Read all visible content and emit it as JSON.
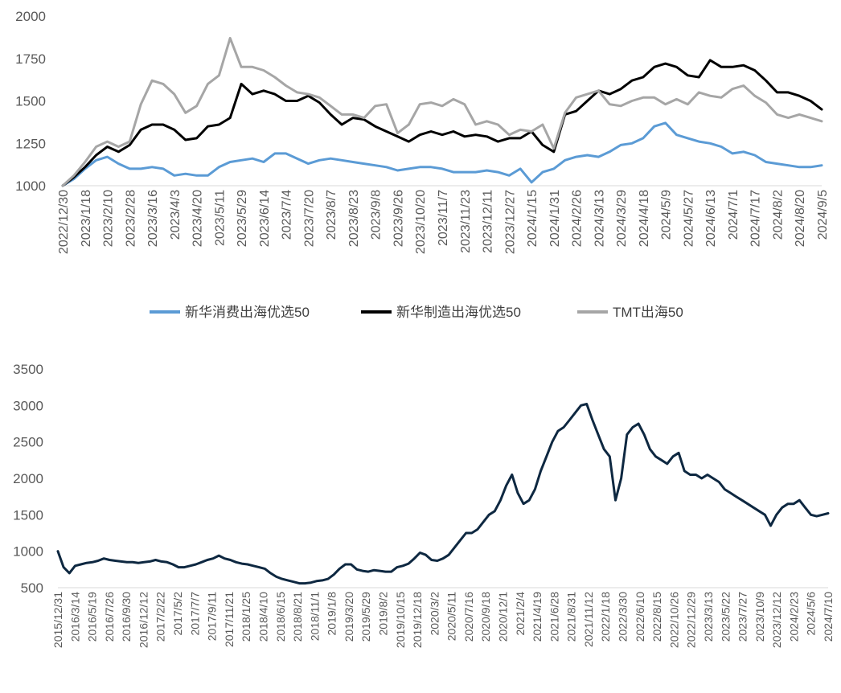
{
  "chart_data": [
    {
      "type": "line",
      "ylim": [
        1000,
        2000
      ],
      "yticks": [
        1000,
        1250,
        1500,
        1750,
        2000
      ],
      "x_labels": [
        "2022/12/30",
        "2023/1/18",
        "2023/2/10",
        "2023/2/28",
        "2023/3/16",
        "2023/4/3",
        "2023/4/20",
        "2023/5/11",
        "2023/5/29",
        "2023/6/14",
        "2023/7/4",
        "2023/7/20",
        "2023/8/7",
        "2023/8/23",
        "2023/9/8",
        "2023/9/26",
        "2023/10/20",
        "2023/11/7",
        "2023/11/23",
        "2023/12/11",
        "2023/12/27",
        "2024/1/15",
        "2024/1/31",
        "2024/2/26",
        "2024/3/13",
        "2024/3/29",
        "2024/4/18",
        "2024/5/9",
        "2024/5/27",
        "2024/6/13",
        "2024/7/1",
        "2024/7/17",
        "2024/8/2",
        "2024/8/20",
        "2024/9/5"
      ],
      "legend_position": "bottom",
      "grid": false,
      "series": [
        {
          "name": "新华消费出海优选50",
          "color": "#5b9bd5",
          "values": [
            1000,
            1040,
            1100,
            1150,
            1170,
            1130,
            1100,
            1100,
            1110,
            1100,
            1060,
            1070,
            1060,
            1060,
            1110,
            1140,
            1150,
            1160,
            1140,
            1190,
            1190,
            1160,
            1130,
            1150,
            1160,
            1150,
            1140,
            1130,
            1120,
            1110,
            1090,
            1100,
            1110,
            1110,
            1100,
            1080,
            1080,
            1080,
            1090,
            1080,
            1060,
            1100,
            1020,
            1080,
            1100,
            1150,
            1170,
            1180,
            1170,
            1200,
            1240,
            1250,
            1280,
            1350,
            1370,
            1300,
            1280,
            1260,
            1250,
            1230,
            1190,
            1200,
            1180,
            1140,
            1130,
            1120,
            1110,
            1110,
            1120
          ]
        },
        {
          "name": "新华制造出海优选50",
          "color": "#000000",
          "values": [
            1000,
            1050,
            1110,
            1180,
            1230,
            1200,
            1240,
            1330,
            1360,
            1360,
            1330,
            1270,
            1280,
            1350,
            1360,
            1400,
            1600,
            1540,
            1560,
            1540,
            1500,
            1500,
            1530,
            1490,
            1420,
            1360,
            1400,
            1390,
            1350,
            1320,
            1290,
            1260,
            1300,
            1320,
            1300,
            1320,
            1290,
            1300,
            1290,
            1260,
            1280,
            1280,
            1320,
            1240,
            1200,
            1420,
            1440,
            1500,
            1560,
            1540,
            1570,
            1620,
            1640,
            1700,
            1720,
            1700,
            1650,
            1640,
            1740,
            1700,
            1700,
            1710,
            1680,
            1620,
            1550,
            1550,
            1530,
            1500,
            1450
          ]
        },
        {
          "name": "TMT出海50",
          "color": "#a6a6a6",
          "values": [
            1000,
            1060,
            1140,
            1230,
            1260,
            1230,
            1260,
            1480,
            1620,
            1600,
            1540,
            1430,
            1470,
            1600,
            1650,
            1870,
            1700,
            1700,
            1680,
            1640,
            1590,
            1550,
            1540,
            1520,
            1470,
            1420,
            1420,
            1400,
            1470,
            1480,
            1310,
            1360,
            1480,
            1490,
            1470,
            1510,
            1480,
            1360,
            1380,
            1360,
            1300,
            1330,
            1320,
            1360,
            1220,
            1430,
            1520,
            1540,
            1560,
            1480,
            1470,
            1500,
            1520,
            1520,
            1480,
            1510,
            1480,
            1550,
            1530,
            1520,
            1570,
            1590,
            1530,
            1490,
            1420,
            1400,
            1420,
            1400,
            1380
          ]
        }
      ]
    },
    {
      "type": "line",
      "ylim": [
        500,
        3500
      ],
      "yticks": [
        500,
        1000,
        1500,
        2000,
        2500,
        3000,
        3500
      ],
      "x_labels": [
        "2015/12/31",
        "2016/3/14",
        "2016/5/19",
        "2016/7/26",
        "2016/9/30",
        "2016/12/12",
        "2017/2/22",
        "2017/5/2",
        "2017/7/7",
        "2017/9/11",
        "2017/11/21",
        "2018/1/25",
        "2018/4/10",
        "2018/6/15",
        "2018/8/21",
        "2018/11/1",
        "2019/1/8",
        "2019/3/20",
        "2019/5/29",
        "2019/8/2",
        "2019/10/15",
        "2019/12/18",
        "2020/3/2",
        "2020/5/11",
        "2020/7/16",
        "2020/9/18",
        "2020/12/1",
        "2021/2/4",
        "2021/4/19",
        "2021/6/28",
        "2021/8/31",
        "2021/11/12",
        "2022/1/18",
        "2022/3/30",
        "2022/6/10",
        "2022/8/15",
        "2022/10/26",
        "2022/12/29",
        "2023/3/13",
        "2023/5/22",
        "2023/7/27",
        "2023/10/9",
        "2023/12/12",
        "2024/2/23",
        "2024/5/6",
        "2024/7/10"
      ],
      "grid": false,
      "series": [
        {
          "name": "",
          "color": "#0e2841",
          "values": [
            1000,
            780,
            700,
            800,
            820,
            840,
            850,
            870,
            900,
            880,
            870,
            860,
            850,
            850,
            840,
            850,
            860,
            880,
            860,
            850,
            820,
            780,
            780,
            800,
            820,
            850,
            880,
            900,
            940,
            900,
            880,
            850,
            830,
            820,
            800,
            780,
            760,
            700,
            650,
            620,
            600,
            580,
            560,
            560,
            570,
            590,
            600,
            620,
            680,
            760,
            820,
            820,
            750,
            730,
            720,
            740,
            730,
            720,
            720,
            780,
            800,
            830,
            900,
            980,
            950,
            880,
            870,
            900,
            950,
            1050,
            1150,
            1250,
            1250,
            1300,
            1400,
            1500,
            1550,
            1700,
            1900,
            2050,
            1800,
            1650,
            1700,
            1850,
            2100,
            2300,
            2500,
            2650,
            2700,
            2800,
            2900,
            3000,
            3020,
            2800,
            2600,
            2400,
            2300,
            1700,
            2000,
            2600,
            2700,
            2750,
            2600,
            2400,
            2300,
            2250,
            2200,
            2300,
            2350,
            2100,
            2050,
            2050,
            2000,
            2050,
            2000,
            1950,
            1850,
            1800,
            1750,
            1700,
            1650,
            1600,
            1550,
            1500,
            1350,
            1500,
            1600,
            1650,
            1650,
            1700,
            1600,
            1500,
            1480,
            1500,
            1520
          ]
        }
      ]
    }
  ]
}
